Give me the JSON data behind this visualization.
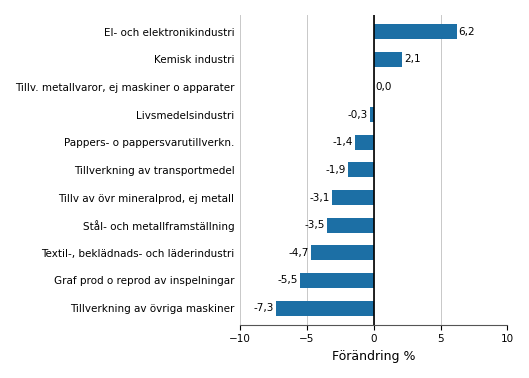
{
  "categories": [
    "Tillverkning av övriga maskiner",
    "Graf prod o reprod av inspelningar",
    "Textil-, beklädnads- och läderindustri",
    "Stål- och metallframställning",
    "Tillv av övr mineralprod, ej metall",
    "Tillverkning av transportmedel",
    "Pappers- o pappersvarutillverkn.",
    "Livsmedelsindustri",
    "Tillv. metallvaror, ej maskiner o apparater",
    "Kemisk industri",
    "El- och elektronikindustri"
  ],
  "values": [
    -7.3,
    -5.5,
    -4.7,
    -3.5,
    -3.1,
    -1.9,
    -1.4,
    -0.3,
    0.0,
    2.1,
    6.2
  ],
  "bar_color": "#1c6fa5",
  "xlabel": "Förändring %",
  "xlim": [
    -10,
    10
  ],
  "xticks": [
    -10,
    -5,
    0,
    5,
    10
  ],
  "value_labels": [
    "-7,3",
    "-5,5",
    "-4,7",
    "-3,5",
    "-3,1",
    "-1,9",
    "-1,4",
    "-0,3",
    "0,0",
    "2,1",
    "6,2"
  ],
  "background_color": "#ffffff",
  "grid_color": "#c8c8c8",
  "label_fontsize": 7.5,
  "value_fontsize": 7.5,
  "xlabel_fontsize": 9,
  "bar_height": 0.55
}
